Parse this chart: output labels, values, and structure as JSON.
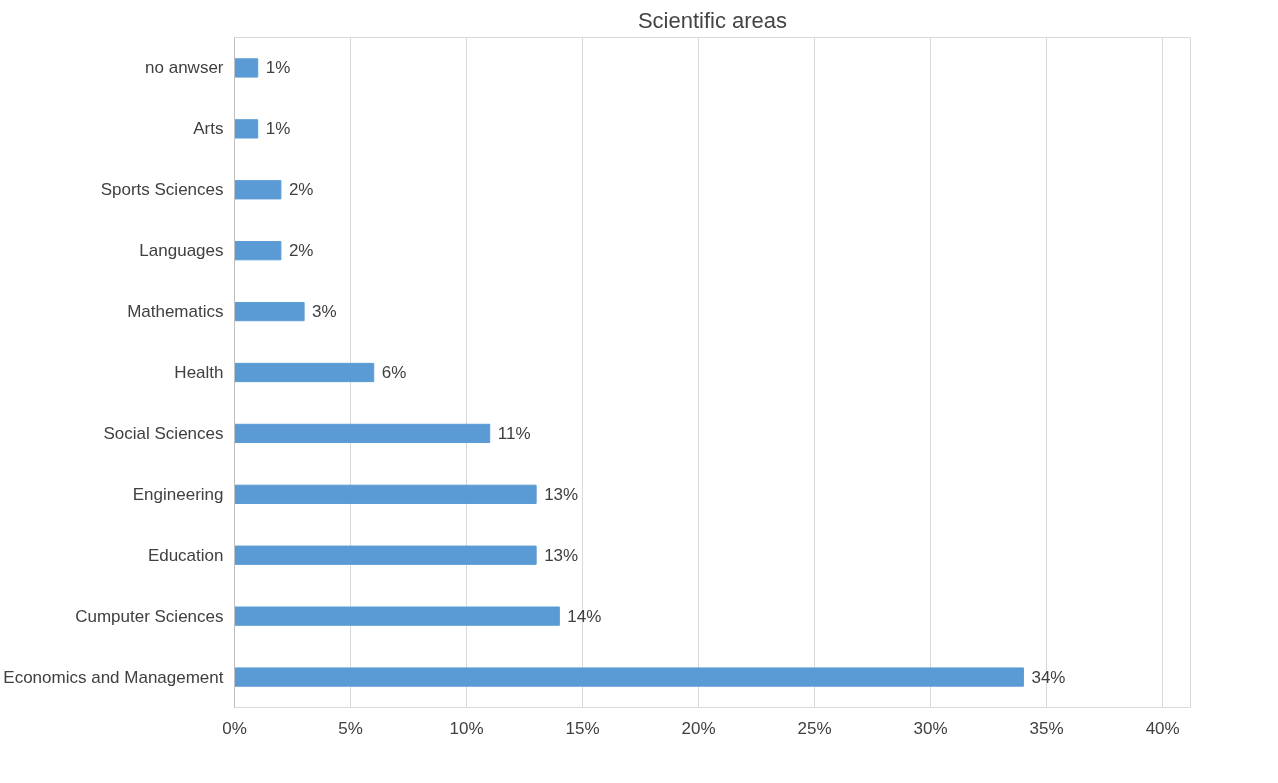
{
  "chart_data": {
    "type": "bar",
    "orientation": "horizontal",
    "title": "Scientific areas",
    "categories": [
      "no anwser",
      "Arts",
      "Sports Sciences",
      "Languages",
      "Mathematics",
      "Health",
      "Social Sciences",
      "Engineering",
      "Education",
      "Cumputer Sciences",
      "Economics and Management"
    ],
    "values": [
      1,
      1,
      2,
      2,
      3,
      6,
      11,
      13,
      13,
      14,
      34
    ],
    "value_labels": [
      "1%",
      "1%",
      "2%",
      "2%",
      "3%",
      "6%",
      "11%",
      "13%",
      "13%",
      "14%",
      "34%"
    ],
    "color": "#5b9bd5",
    "xlim": [
      0,
      40
    ],
    "xticks": [
      {
        "value": 0,
        "label": "0%"
      },
      {
        "value": 5,
        "label": "5%"
      },
      {
        "value": 10,
        "label": "10%"
      },
      {
        "value": 15,
        "label": "15%"
      },
      {
        "value": 20,
        "label": "20%"
      },
      {
        "value": 25,
        "label": "25%"
      },
      {
        "value": 30,
        "label": "30%"
      },
      {
        "value": 35,
        "label": "35%"
      },
      {
        "value": 40,
        "label": "40%"
      }
    ],
    "grid": "x"
  }
}
